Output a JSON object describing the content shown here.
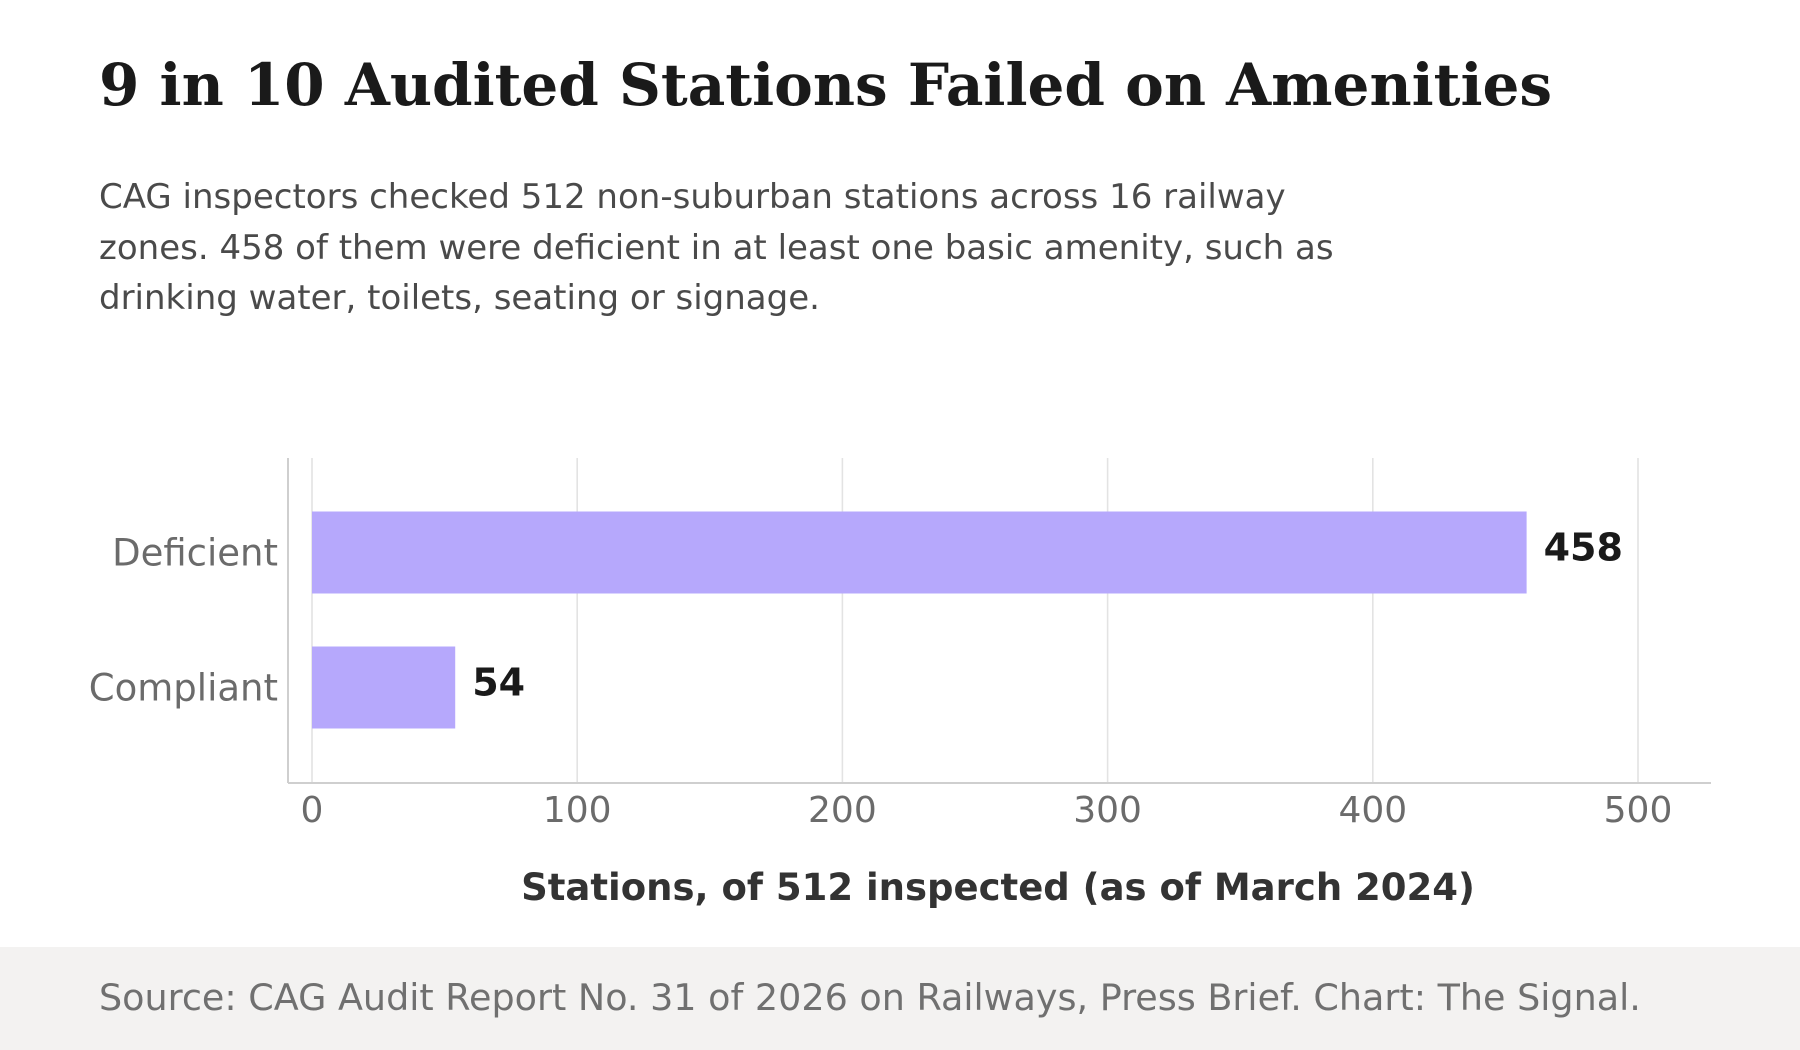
{
  "header": {
    "title": "9 in 10 Audited Stations Failed on Amenities",
    "subtitle": "CAG inspectors checked 512 non-suburban stations across 16 railway zones. 458 of them were deficient in at least one basic amenity, such as drinking water, toilets, seating or signage."
  },
  "chart_data": {
    "type": "bar",
    "orientation": "horizontal",
    "title": "9 in 10 Audited Stations Failed on Amenities",
    "categories": [
      "Deficient",
      "Compliant"
    ],
    "values": [
      458,
      54
    ],
    "value_labels": [
      "458",
      "54"
    ],
    "xlabel": "Stations, of 512 inspected (as of March 2024)",
    "ylabel": "",
    "xlim": [
      0,
      530
    ],
    "xticks": [
      0,
      100,
      200,
      300,
      400,
      500
    ],
    "xtick_labels": [
      "0",
      "100",
      "200",
      "300",
      "400",
      "500"
    ],
    "grid": "vertical",
    "legend": "none",
    "bar_color": "#b6a8fc"
  },
  "footer": {
    "source": "Source: CAG Audit Report No. 31 of 2026 on Railways, Press Brief. Chart: The Signal."
  },
  "colors": {
    "bar": "#b6a8fc",
    "title": "#1a1a1a",
    "subtitle": "#4a4a4a",
    "axis_text": "#6b6b6b",
    "value_label": "#1a1a1a",
    "footer_bg": "#f3f2f1"
  }
}
